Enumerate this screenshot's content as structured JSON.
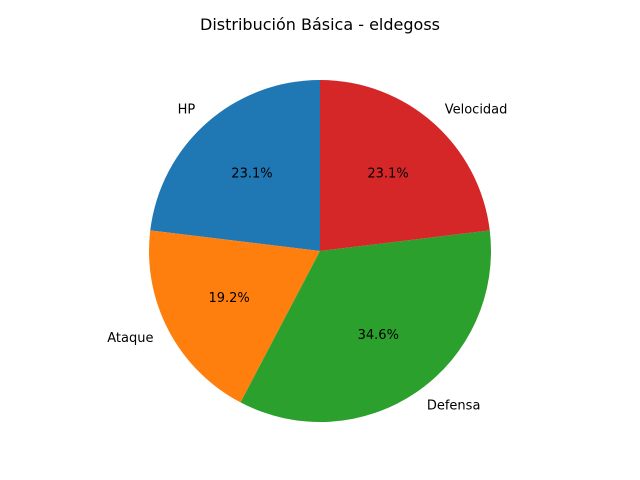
{
  "chart_data": {
    "type": "pie",
    "title": "Distribución Básica - eldegoss",
    "categories": [
      "HP",
      "Ataque",
      "Defensa",
      "Velocidad"
    ],
    "values": [
      45,
      37.5,
      67.5,
      45
    ],
    "percent_labels": [
      "23.1%",
      "19.2%",
      "34.6%",
      "23.1%"
    ],
    "colors": [
      "#1f77b4",
      "#ff7f0e",
      "#2ca02c",
      "#d62728"
    ],
    "start_angle_deg": 90,
    "direction": "counterclockwise",
    "legend": "none"
  }
}
